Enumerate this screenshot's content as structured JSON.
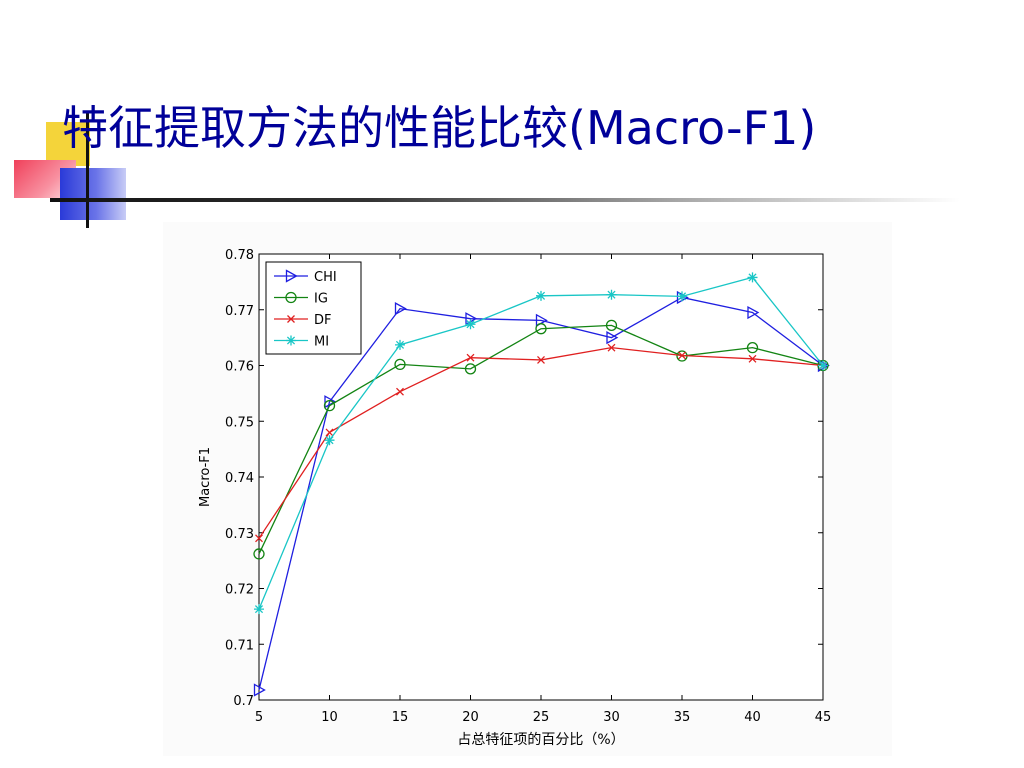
{
  "slide": {
    "title": "特征提取方法的性能比较(Macro-F1)"
  },
  "colors": {
    "title": "#000099",
    "CHI": "#1f1fe0",
    "IG": "#138413",
    "DF": "#e02020",
    "MI": "#19c6c6"
  },
  "chart_data": {
    "type": "line",
    "title": "",
    "xlabel": "占总特征项的百分比（%）",
    "ylabel": "Macro-F1",
    "x": [
      5,
      10,
      15,
      20,
      25,
      30,
      35,
      40,
      45
    ],
    "xticks": [
      "5",
      "10",
      "15",
      "20",
      "25",
      "30",
      "35",
      "40",
      "45"
    ],
    "yticks": [
      "0.7",
      "0.71",
      "0.72",
      "0.73",
      "0.74",
      "0.75",
      "0.76",
      "0.77",
      "0.78"
    ],
    "xlim": [
      5,
      45
    ],
    "ylim": [
      0.7,
      0.78
    ],
    "grid": false,
    "legend_position": "top-left",
    "series": [
      {
        "name": "CHI",
        "marker": "triangle-right",
        "values": [
          0.7018,
          0.7535,
          0.7702,
          0.7684,
          0.7681,
          0.765,
          0.7722,
          0.7695,
          0.76
        ]
      },
      {
        "name": "IG",
        "marker": "circle",
        "values": [
          0.7262,
          0.7528,
          0.7602,
          0.7594,
          0.7666,
          0.7672,
          0.7617,
          0.7632,
          0.76
        ]
      },
      {
        "name": "DF",
        "marker": "x",
        "values": [
          0.729,
          0.748,
          0.7553,
          0.7614,
          0.761,
          0.7632,
          0.7618,
          0.7612,
          0.76
        ]
      },
      {
        "name": "MI",
        "marker": "star",
        "values": [
          0.7163,
          0.7466,
          0.7637,
          0.7674,
          0.7725,
          0.7727,
          0.7724,
          0.7758,
          0.76
        ]
      }
    ]
  }
}
